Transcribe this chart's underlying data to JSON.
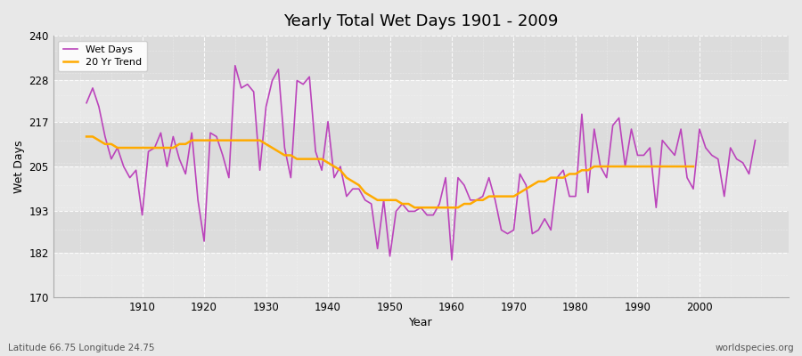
{
  "title": "Yearly Total Wet Days 1901 - 2009",
  "xlabel": "Year",
  "ylabel": "Wet Days",
  "footnote_left": "Latitude 66.75 Longitude 24.75",
  "footnote_right": "worldspecies.org",
  "line_color": "#bb44bb",
  "trend_color": "#ffaa00",
  "bg_color": "#e8e8e8",
  "plot_bg_color": "#ebebeb",
  "years": [
    1901,
    1902,
    1903,
    1904,
    1905,
    1906,
    1907,
    1908,
    1909,
    1910,
    1911,
    1912,
    1913,
    1914,
    1915,
    1916,
    1917,
    1918,
    1919,
    1920,
    1921,
    1922,
    1923,
    1924,
    1925,
    1926,
    1927,
    1928,
    1929,
    1930,
    1931,
    1932,
    1933,
    1934,
    1935,
    1936,
    1937,
    1938,
    1939,
    1940,
    1941,
    1942,
    1943,
    1944,
    1945,
    1946,
    1947,
    1948,
    1949,
    1950,
    1951,
    1952,
    1953,
    1954,
    1955,
    1956,
    1957,
    1958,
    1959,
    1960,
    1961,
    1962,
    1963,
    1964,
    1965,
    1966,
    1967,
    1968,
    1969,
    1970,
    1971,
    1972,
    1973,
    1974,
    1975,
    1976,
    1977,
    1978,
    1979,
    1980,
    1981,
    1982,
    1983,
    1984,
    1985,
    1986,
    1987,
    1988,
    1989,
    1990,
    1991,
    1992,
    1993,
    1994,
    1995,
    1996,
    1997,
    1998,
    1999,
    2000,
    2001,
    2002,
    2003,
    2004,
    2005,
    2006,
    2007,
    2008,
    2009
  ],
  "wet_days": [
    222,
    226,
    221,
    213,
    207,
    210,
    205,
    202,
    204,
    192,
    209,
    210,
    214,
    205,
    213,
    207,
    203,
    214,
    196,
    185,
    214,
    213,
    208,
    202,
    232,
    226,
    227,
    225,
    204,
    221,
    228,
    231,
    210,
    202,
    228,
    227,
    229,
    209,
    204,
    217,
    202,
    205,
    197,
    199,
    199,
    196,
    195,
    183,
    196,
    181,
    193,
    195,
    193,
    193,
    194,
    192,
    192,
    195,
    202,
    180,
    202,
    200,
    196,
    196,
    197,
    202,
    196,
    188,
    187,
    188,
    203,
    200,
    187,
    188,
    191,
    188,
    202,
    204,
    197,
    197,
    219,
    198,
    215,
    205,
    202,
    216,
    218,
    205,
    215,
    208,
    208,
    210,
    194,
    212,
    210,
    208,
    215,
    202,
    199,
    215,
    210,
    208,
    207,
    197,
    210,
    207,
    206,
    203,
    212
  ],
  "trend": [
    213,
    213,
    212,
    211,
    211,
    210,
    210,
    210,
    210,
    210,
    210,
    210,
    210,
    210,
    210,
    211,
    211,
    212,
    212,
    212,
    212,
    212,
    212,
    212,
    212,
    212,
    212,
    212,
    212,
    211,
    210,
    209,
    208,
    208,
    207,
    207,
    207,
    207,
    207,
    206,
    205,
    204,
    202,
    201,
    200,
    198,
    197,
    196,
    196,
    196,
    196,
    195,
    195,
    194,
    194,
    194,
    194,
    194,
    194,
    194,
    194,
    195,
    195,
    196,
    196,
    197,
    197,
    197,
    197,
    197,
    198,
    199,
    200,
    201,
    201,
    202,
    202,
    202,
    203,
    203,
    204,
    204,
    205,
    205,
    205,
    205,
    205,
    205,
    205,
    205,
    205,
    205,
    205,
    205,
    205,
    205,
    205,
    205,
    205
  ],
  "ylim": [
    170,
    240
  ],
  "yticks": [
    170,
    182,
    193,
    205,
    217,
    228,
    240
  ],
  "xticks": [
    1910,
    1920,
    1930,
    1940,
    1950,
    1960,
    1970,
    1980,
    1990,
    2000
  ],
  "legend_labels": [
    "Wet Days",
    "20 Yr Trend"
  ],
  "band_colors": [
    "#e8e8e8",
    "#dcdcdc"
  ]
}
